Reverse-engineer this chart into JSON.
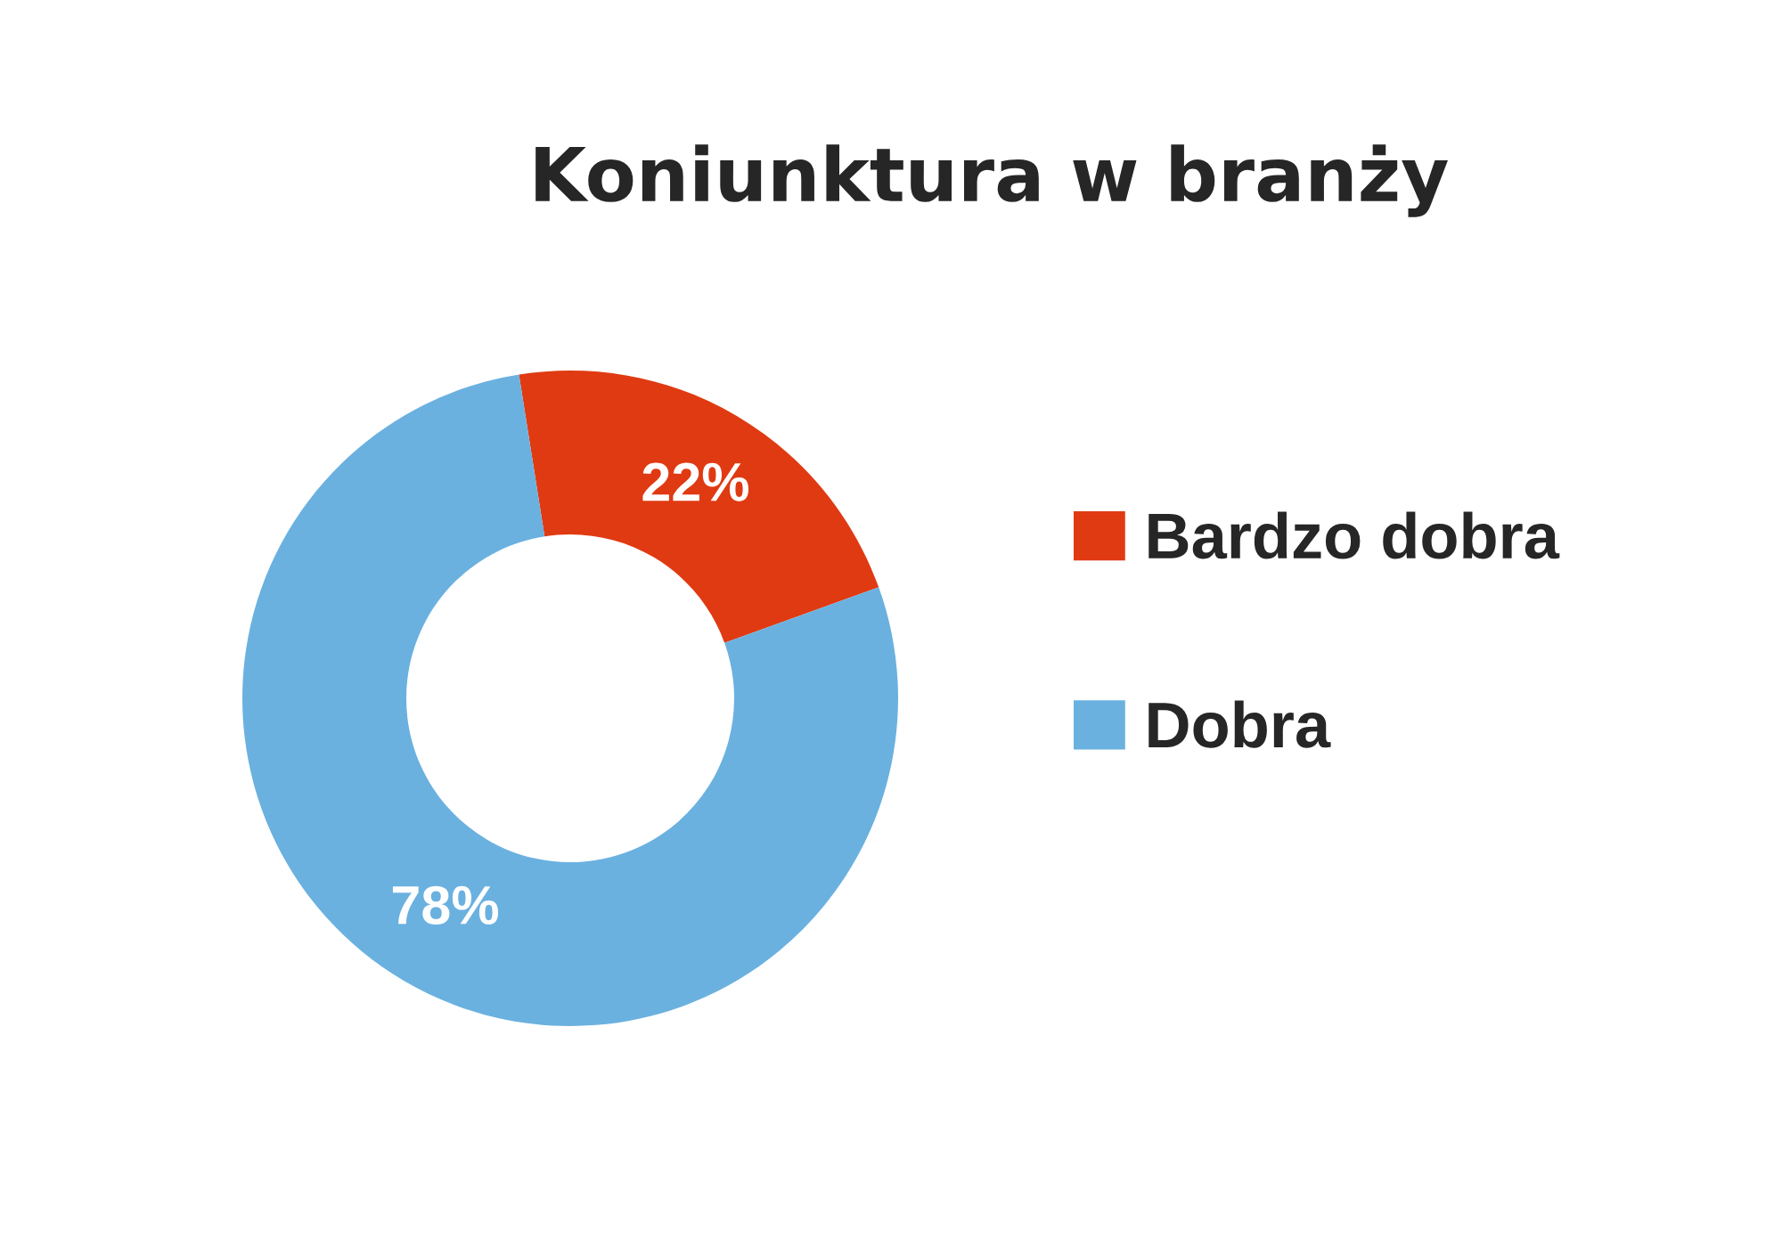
{
  "chart_data": {
    "type": "donut",
    "title": "Koniunktura w branży",
    "categories": [
      "Bardzo dobra",
      "Dobra"
    ],
    "values": [
      22,
      78
    ],
    "colors": [
      "#e03a12",
      "#6ab1e0"
    ],
    "value_labels": [
      "22%",
      "78%"
    ],
    "legend": "right"
  }
}
